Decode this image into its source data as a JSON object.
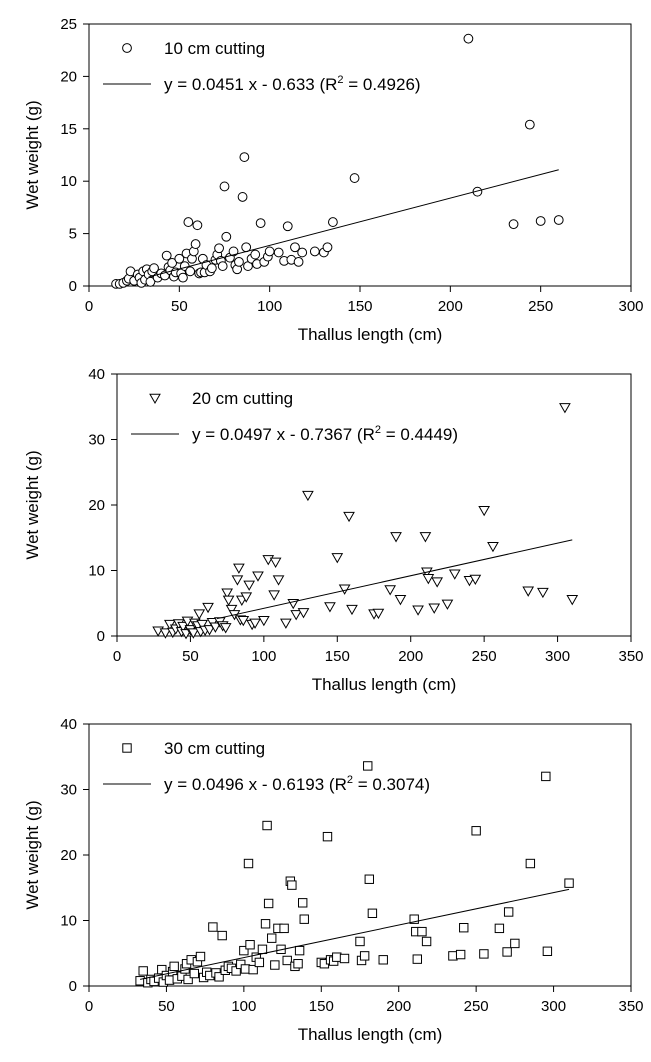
{
  "chart_data": [
    {
      "type": "scatter",
      "xlabel": "Thallus length (cm)",
      "ylabel": "Wet weight (g)",
      "xlim": [
        0,
        300
      ],
      "ylim": [
        0,
        25
      ],
      "xticks": [
        0,
        50,
        100,
        150,
        200,
        250,
        300
      ],
      "yticks": [
        0,
        5,
        10,
        15,
        20,
        25
      ],
      "grid": false,
      "legend_position": "top-left",
      "legend": {
        "marker_label": "10 cm cutting",
        "line_label_prefix": "y = 0.0451 x - 0.633 (R",
        "line_label_sup": "2",
        "line_label_suffix": " = 0.4926)"
      },
      "series": [
        {
          "marker": "circle",
          "points": [
            [
              15,
              0.2
            ],
            [
              17,
              0.2
            ],
            [
              19,
              0.3
            ],
            [
              21,
              0.5
            ],
            [
              22,
              0.7
            ],
            [
              23,
              1.4
            ],
            [
              25,
              0.5
            ],
            [
              27,
              1.1
            ],
            [
              28,
              0.8
            ],
            [
              29,
              0.3
            ],
            [
              30,
              1.4
            ],
            [
              31,
              0.6
            ],
            [
              32,
              1.6
            ],
            [
              33,
              1.1
            ],
            [
              34,
              0.4
            ],
            [
              35,
              1.4
            ],
            [
              36,
              1.7
            ],
            [
              38,
              0.8
            ],
            [
              40,
              1.2
            ],
            [
              42,
              1.0
            ],
            [
              43,
              2.9
            ],
            [
              44,
              1.8
            ],
            [
              45,
              1.5
            ],
            [
              46,
              2.2
            ],
            [
              47,
              0.9
            ],
            [
              48,
              1.3
            ],
            [
              50,
              2.6
            ],
            [
              51,
              1.2
            ],
            [
              52,
              0.8
            ],
            [
              53,
              1.9
            ],
            [
              54,
              3.1
            ],
            [
              55,
              6.1
            ],
            [
              56,
              1.4
            ],
            [
              57,
              2.6
            ],
            [
              58,
              3.3
            ],
            [
              59,
              4.0
            ],
            [
              60,
              5.8
            ],
            [
              61,
              1.2
            ],
            [
              62,
              1.3
            ],
            [
              63,
              2.6
            ],
            [
              64,
              1.3
            ],
            [
              65,
              2.0
            ],
            [
              67,
              1.4
            ],
            [
              68,
              1.7
            ],
            [
              70,
              2.5
            ],
            [
              71,
              3.0
            ],
            [
              72,
              3.6
            ],
            [
              73,
              2.4
            ],
            [
              74,
              1.9
            ],
            [
              75,
              9.5
            ],
            [
              76,
              4.7
            ],
            [
              78,
              2.7
            ],
            [
              80,
              3.3
            ],
            [
              81,
              2.0
            ],
            [
              82,
              1.6
            ],
            [
              83,
              2.3
            ],
            [
              85,
              8.5
            ],
            [
              86,
              12.3
            ],
            [
              87,
              3.7
            ],
            [
              88,
              1.9
            ],
            [
              90,
              2.6
            ],
            [
              92,
              3.0
            ],
            [
              93,
              2.1
            ],
            [
              95,
              6.0
            ],
            [
              97,
              2.3
            ],
            [
              99,
              2.8
            ],
            [
              100,
              3.3
            ],
            [
              105,
              3.2
            ],
            [
              108,
              2.4
            ],
            [
              110,
              5.7
            ],
            [
              112,
              2.5
            ],
            [
              114,
              3.7
            ],
            [
              116,
              2.3
            ],
            [
              118,
              3.2
            ],
            [
              125,
              3.3
            ],
            [
              130,
              3.2
            ],
            [
              132,
              3.7
            ],
            [
              135,
              6.1
            ],
            [
              147,
              10.3
            ],
            [
              210,
              23.6
            ],
            [
              215,
              9.0
            ],
            [
              235,
              5.9
            ],
            [
              244,
              15.4
            ],
            [
              250,
              6.2
            ],
            [
              260,
              6.3
            ]
          ]
        }
      ],
      "trendline": {
        "slope": 0.0451,
        "intercept": -0.633,
        "x_start": 33,
        "x_end": 260
      }
    },
    {
      "type": "scatter",
      "xlabel": "Thallus length (cm)",
      "ylabel": "Wet weight (g)",
      "xlim": [
        0,
        350
      ],
      "ylim": [
        0,
        40
      ],
      "xticks": [
        0,
        50,
        100,
        150,
        200,
        250,
        300,
        350
      ],
      "yticks": [
        0,
        10,
        20,
        30,
        40
      ],
      "grid": false,
      "legend_position": "top-left",
      "legend": {
        "marker_label": "20 cm cutting",
        "line_label_prefix": "y = 0.0497 x - 0.7367 (R",
        "line_label_sup": "2",
        "line_label_suffix": " = 0.4449)"
      },
      "series": [
        {
          "marker": "triangle-down",
          "points": [
            [
              28,
              0.8
            ],
            [
              33,
              0.5
            ],
            [
              36,
              1.8
            ],
            [
              38,
              0.6
            ],
            [
              40,
              1.1
            ],
            [
              42,
              1.9
            ],
            [
              44,
              0.7
            ],
            [
              45,
              1.5
            ],
            [
              47,
              0.4
            ],
            [
              48,
              2.3
            ],
            [
              50,
              1.0
            ],
            [
              52,
              0.5
            ],
            [
              53,
              2.0
            ],
            [
              55,
              1.6
            ],
            [
              56,
              3.4
            ],
            [
              57,
              0.7
            ],
            [
              58,
              1.8
            ],
            [
              60,
              0.9
            ],
            [
              62,
              4.4
            ],
            [
              63,
              1.0
            ],
            [
              65,
              2.1
            ],
            [
              67,
              1.4
            ],
            [
              70,
              2.2
            ],
            [
              72,
              1.6
            ],
            [
              74,
              1.3
            ],
            [
              75,
              6.6
            ],
            [
              76,
              5.5
            ],
            [
              78,
              4.1
            ],
            [
              80,
              3.3
            ],
            [
              82,
              8.6
            ],
            [
              83,
              10.4
            ],
            [
              84,
              2.5
            ],
            [
              85,
              5.5
            ],
            [
              86,
              2.4
            ],
            [
              88,
              6.0
            ],
            [
              90,
              7.8
            ],
            [
              92,
              1.8
            ],
            [
              94,
              2.0
            ],
            [
              96,
              9.2
            ],
            [
              100,
              2.4
            ],
            [
              103,
              11.7
            ],
            [
              107,
              6.3
            ],
            [
              108,
              11.3
            ],
            [
              110,
              8.6
            ],
            [
              115,
              2.0
            ],
            [
              120,
              5.0
            ],
            [
              122,
              3.3
            ],
            [
              127,
              3.6
            ],
            [
              130,
              21.5
            ],
            [
              145,
              4.5
            ],
            [
              150,
              12.0
            ],
            [
              155,
              7.2
            ],
            [
              158,
              18.3
            ],
            [
              160,
              4.1
            ],
            [
              175,
              3.4
            ],
            [
              178,
              3.5
            ],
            [
              186,
              7.1
            ],
            [
              190,
              15.2
            ],
            [
              193,
              5.6
            ],
            [
              205,
              4.0
            ],
            [
              210,
              15.2
            ],
            [
              211,
              9.8
            ],
            [
              212,
              8.8
            ],
            [
              216,
              4.3
            ],
            [
              218,
              8.3
            ],
            [
              225,
              4.9
            ],
            [
              230,
              9.5
            ],
            [
              240,
              8.5
            ],
            [
              244,
              8.7
            ],
            [
              250,
              19.2
            ],
            [
              256,
              13.7
            ],
            [
              280,
              6.9
            ],
            [
              290,
              6.7
            ],
            [
              305,
              34.9
            ],
            [
              310,
              5.6
            ]
          ]
        }
      ],
      "trendline": {
        "slope": 0.0497,
        "intercept": -0.7367,
        "x_start": 68,
        "x_end": 310
      }
    },
    {
      "type": "scatter",
      "xlabel": "Thallus length (cm)",
      "ylabel": "Wet weight (g)",
      "xlim": [
        0,
        350
      ],
      "ylim": [
        0,
        40
      ],
      "xticks": [
        0,
        50,
        100,
        150,
        200,
        250,
        300,
        350
      ],
      "yticks": [
        0,
        10,
        20,
        30,
        40
      ],
      "grid": false,
      "legend_position": "top-left",
      "legend": {
        "marker_label": "30 cm cutting",
        "line_label_prefix": "y = 0.0496 x - 0.6193 (R",
        "line_label_sup": "2",
        "line_label_suffix": " = 0.3074)"
      },
      "series": [
        {
          "marker": "square",
          "points": [
            [
              33,
              0.8
            ],
            [
              35,
              2.3
            ],
            [
              38,
              0.5
            ],
            [
              40,
              1.0
            ],
            [
              42,
              0.7
            ],
            [
              45,
              1.2
            ],
            [
              47,
              2.5
            ],
            [
              48,
              0.6
            ],
            [
              50,
              1.6
            ],
            [
              52,
              0.9
            ],
            [
              54,
              2.2
            ],
            [
              55,
              3.0
            ],
            [
              57,
              1.1
            ],
            [
              60,
              1.5
            ],
            [
              62,
              2.6
            ],
            [
              63,
              3.4
            ],
            [
              64,
              1.0
            ],
            [
              66,
              4.0
            ],
            [
              68,
              1.9
            ],
            [
              70,
              3.7
            ],
            [
              72,
              4.5
            ],
            [
              74,
              1.3
            ],
            [
              76,
              2.1
            ],
            [
              78,
              1.6
            ],
            [
              80,
              9.0
            ],
            [
              82,
              2.0
            ],
            [
              84,
              1.4
            ],
            [
              86,
              7.7
            ],
            [
              88,
              2.4
            ],
            [
              90,
              3.0
            ],
            [
              92,
              2.7
            ],
            [
              95,
              2.3
            ],
            [
              98,
              3.3
            ],
            [
              100,
              5.4
            ],
            [
              101,
              2.6
            ],
            [
              103,
              18.7
            ],
            [
              104,
              6.3
            ],
            [
              106,
              2.5
            ],
            [
              108,
              4.4
            ],
            [
              110,
              3.6
            ],
            [
              112,
              5.6
            ],
            [
              114,
              9.5
            ],
            [
              115,
              24.5
            ],
            [
              116,
              12.6
            ],
            [
              118,
              7.3
            ],
            [
              120,
              3.2
            ],
            [
              122,
              8.8
            ],
            [
              124,
              5.6
            ],
            [
              126,
              8.8
            ],
            [
              128,
              3.9
            ],
            [
              130,
              16.0
            ],
            [
              131,
              15.4
            ],
            [
              133,
              3.0
            ],
            [
              135,
              3.4
            ],
            [
              136,
              5.4
            ],
            [
              138,
              12.7
            ],
            [
              139,
              10.2
            ],
            [
              150,
              3.6
            ],
            [
              152,
              3.4
            ],
            [
              154,
              22.8
            ],
            [
              156,
              4.0
            ],
            [
              158,
              3.8
            ],
            [
              160,
              4.4
            ],
            [
              165,
              4.2
            ],
            [
              175,
              6.8
            ],
            [
              176,
              3.9
            ],
            [
              178,
              4.6
            ],
            [
              180,
              33.6
            ],
            [
              181,
              16.3
            ],
            [
              183,
              11.1
            ],
            [
              190,
              4.0
            ],
            [
              210,
              10.2
            ],
            [
              211,
              8.3
            ],
            [
              212,
              4.1
            ],
            [
              215,
              8.3
            ],
            [
              218,
              6.8
            ],
            [
              235,
              4.6
            ],
            [
              240,
              4.8
            ],
            [
              242,
              8.9
            ],
            [
              250,
              23.7
            ],
            [
              255,
              4.9
            ],
            [
              265,
              8.8
            ],
            [
              270,
              5.2
            ],
            [
              271,
              11.3
            ],
            [
              275,
              6.5
            ],
            [
              285,
              18.7
            ],
            [
              295,
              32.0
            ],
            [
              296,
              5.3
            ],
            [
              310,
              15.7
            ]
          ]
        }
      ],
      "trendline": {
        "slope": 0.0496,
        "intercept": -0.6193,
        "x_start": 33,
        "x_end": 310
      }
    }
  ]
}
